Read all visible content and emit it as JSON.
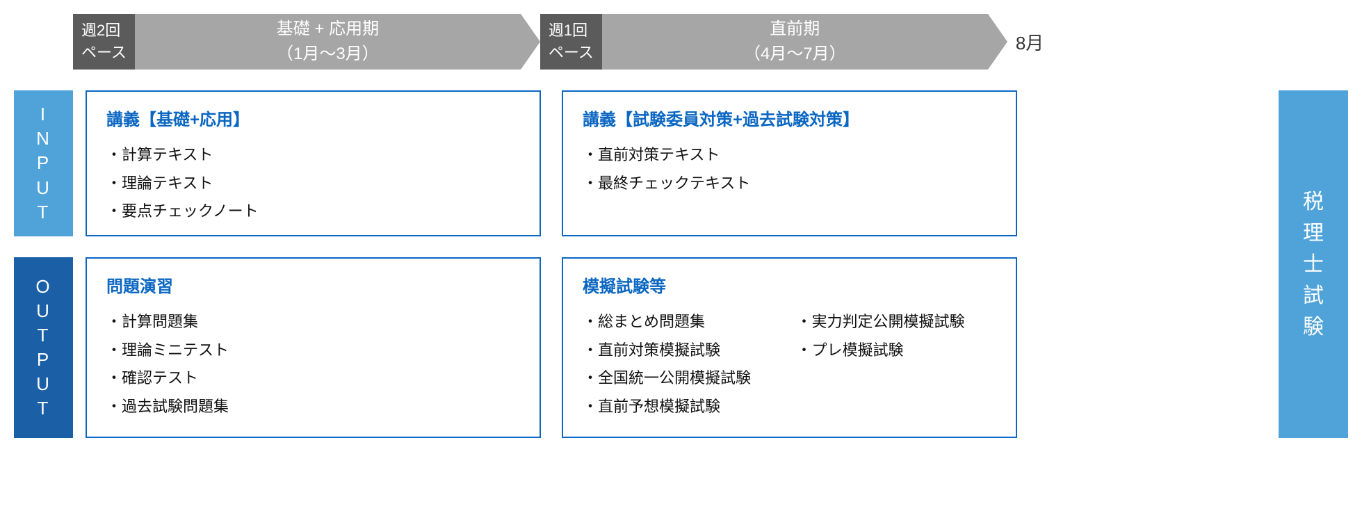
{
  "colors": {
    "arrow_gray": "#a6a6a6",
    "pace_dark": "#5b5b5b",
    "input_blue": "#4fa3d9",
    "output_blue": "#1b5fa6",
    "title_blue": "#0b67c2",
    "border_blue": "#0b67c2",
    "text": "#111111",
    "white": "#ffffff"
  },
  "timeline": {
    "phase1": {
      "pace": "週2回\nペース",
      "title_line1": "基礎 + 応用期",
      "title_line2": "（1月～3月）"
    },
    "phase2": {
      "pace": "週1回\nペース",
      "title_line1": "直前期",
      "title_line2": "（4月～7月）"
    },
    "end_month": "8月"
  },
  "side": {
    "input": "INPUT",
    "output": "OUTPUT"
  },
  "cells": {
    "input_p1": {
      "title": "講義【基礎+応用】",
      "items": [
        "・計算テキスト",
        "・理論テキスト",
        "・要点チェックノート"
      ]
    },
    "input_p2": {
      "title": "講義【試験委員対策+過去試験対策】",
      "items": [
        "・直前対策テキスト",
        "・最終チェックテキスト"
      ]
    },
    "output_p1": {
      "title": "問題演習",
      "items": [
        "・計算問題集",
        "・理論ミニテスト",
        "・確認テスト",
        "・過去試験問題集"
      ]
    },
    "output_p2": {
      "title": "模擬試験等",
      "items_col1": [
        "・総まとめ問題集",
        "・直前対策模擬試験",
        "・全国統一公開模擬試験",
        "・直前予想模擬試験"
      ],
      "items_col2": [
        "・実力判定公開模擬試験",
        "・プレ模擬試験"
      ]
    }
  },
  "exam": {
    "label": "税理士試験"
  },
  "layout": {
    "phase1_body_width": 655,
    "phase2_body_width": 655,
    "input_row_height": 210,
    "output_row_height": 260
  }
}
